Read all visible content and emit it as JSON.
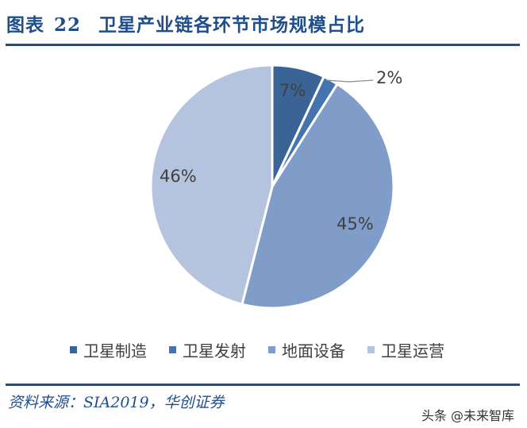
{
  "header": {
    "figure_label": "图表",
    "figure_number": "22",
    "title": "卫星产业链各环节市场规模占比"
  },
  "chart_data": {
    "type": "pie",
    "title": "卫星产业链各环节市场规模占比",
    "categories": [
      "卫星制造",
      "卫星发射",
      "地面设备",
      "卫星运营"
    ],
    "values": [
      7,
      2,
      45,
      46
    ],
    "labels": [
      "7%",
      "2%",
      "45%",
      "46%"
    ],
    "colors": [
      "#3b6496",
      "#4474b0",
      "#7f9dc8",
      "#b5c4de"
    ],
    "legend_position": "bottom"
  },
  "legend": [
    {
      "label": "卫星制造",
      "color": "#3b6496"
    },
    {
      "label": "卫星发射",
      "color": "#4474b0"
    },
    {
      "label": "地面设备",
      "color": "#7f9dc8"
    },
    {
      "label": "卫星运营",
      "color": "#b5c4de"
    }
  ],
  "footer": {
    "source": "资料来源：SIA2019，华创证券",
    "watermark": "头条 @未来智库"
  }
}
